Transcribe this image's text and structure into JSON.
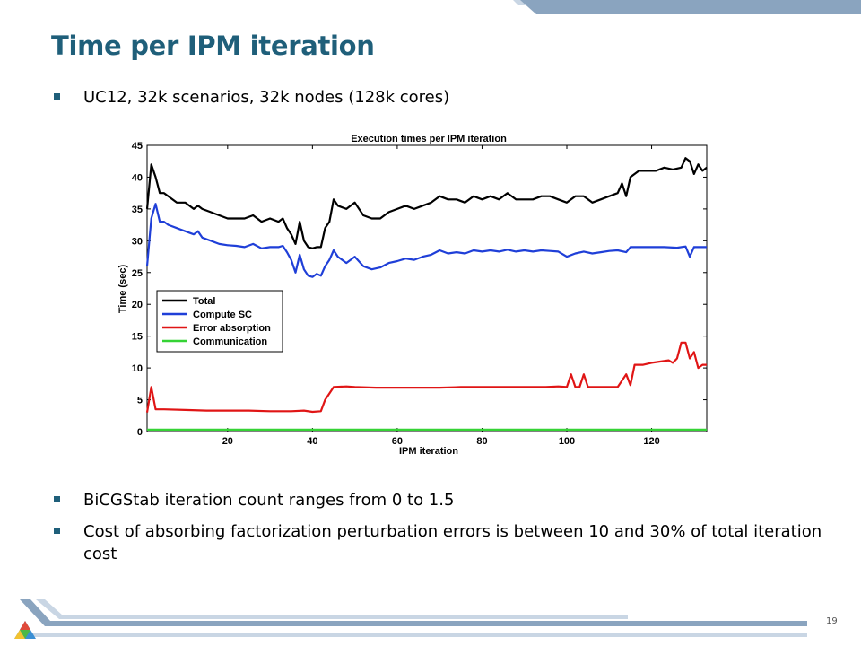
{
  "slide": {
    "title": "Time per IPM iteration",
    "bullets": [
      "UC12, 32k scenarios, 32k nodes (128k cores)",
      "BiCGStab iteration count ranges from 0 to 1.5",
      "Cost of absorbing factorization perturbation errors is between 10 and 30% of total iteration cost"
    ],
    "page_number": "19",
    "colors": {
      "title": "#1f5f7a",
      "bar_dark": "#8aa4bf",
      "bar_light": "#c9d6e4"
    }
  },
  "chart_data": {
    "type": "line",
    "title": "Execution times per IPM iteration",
    "xlabel": "IPM iteration",
    "ylabel": "Time (sec)",
    "xlim": [
      1,
      133
    ],
    "ylim": [
      0,
      45
    ],
    "xticks": [
      20,
      40,
      60,
      80,
      100,
      120
    ],
    "yticks": [
      0,
      5,
      10,
      15,
      20,
      25,
      30,
      35,
      40,
      45
    ],
    "grid": false,
    "legend_position": "center-left",
    "series": [
      {
        "name": "Total",
        "color": "#000000",
        "points": [
          [
            1,
            35
          ],
          [
            2,
            42
          ],
          [
            3,
            40
          ],
          [
            4,
            37.5
          ],
          [
            5,
            37.5
          ],
          [
            6,
            37
          ],
          [
            8,
            36
          ],
          [
            10,
            36
          ],
          [
            12,
            35
          ],
          [
            13,
            35.5
          ],
          [
            14,
            35
          ],
          [
            16,
            34.5
          ],
          [
            18,
            34
          ],
          [
            20,
            33.5
          ],
          [
            22,
            33.5
          ],
          [
            24,
            33.5
          ],
          [
            26,
            34
          ],
          [
            28,
            33
          ],
          [
            30,
            33.5
          ],
          [
            32,
            33
          ],
          [
            33,
            33.5
          ],
          [
            34,
            32
          ],
          [
            35,
            31
          ],
          [
            36,
            29.5
          ],
          [
            37,
            33
          ],
          [
            38,
            30
          ],
          [
            39,
            29
          ],
          [
            40,
            28.8
          ],
          [
            41,
            29
          ],
          [
            42,
            29
          ],
          [
            43,
            32
          ],
          [
            44,
            33
          ],
          [
            45,
            36.5
          ],
          [
            46,
            35.5
          ],
          [
            48,
            35
          ],
          [
            50,
            36
          ],
          [
            52,
            34
          ],
          [
            54,
            33.5
          ],
          [
            56,
            33.5
          ],
          [
            58,
            34.5
          ],
          [
            60,
            35
          ],
          [
            62,
            35.5
          ],
          [
            64,
            35
          ],
          [
            66,
            35.5
          ],
          [
            68,
            36
          ],
          [
            70,
            37
          ],
          [
            72,
            36.5
          ],
          [
            74,
            36.5
          ],
          [
            76,
            36
          ],
          [
            78,
            37
          ],
          [
            80,
            36.5
          ],
          [
            82,
            37
          ],
          [
            84,
            36.5
          ],
          [
            86,
            37.5
          ],
          [
            88,
            36.5
          ],
          [
            90,
            36.5
          ],
          [
            92,
            36.5
          ],
          [
            94,
            37
          ],
          [
            96,
            37
          ],
          [
            98,
            36.5
          ],
          [
            100,
            36
          ],
          [
            102,
            37
          ],
          [
            104,
            37
          ],
          [
            106,
            36
          ],
          [
            108,
            36.5
          ],
          [
            110,
            37
          ],
          [
            112,
            37.5
          ],
          [
            113,
            39
          ],
          [
            114,
            37
          ],
          [
            115,
            40
          ],
          [
            117,
            41
          ],
          [
            119,
            41
          ],
          [
            121,
            41
          ],
          [
            123,
            41.5
          ],
          [
            125,
            41.2
          ],
          [
            127,
            41.5
          ],
          [
            128,
            43
          ],
          [
            129,
            42.5
          ],
          [
            130,
            40.5
          ],
          [
            131,
            42
          ],
          [
            132,
            41
          ],
          [
            133,
            41.5
          ]
        ]
      },
      {
        "name": "Compute SC",
        "color": "#1f3fd8",
        "points": [
          [
            1,
            26
          ],
          [
            2,
            33.5
          ],
          [
            3,
            35.8
          ],
          [
            4,
            33
          ],
          [
            5,
            33
          ],
          [
            6,
            32.5
          ],
          [
            8,
            32
          ],
          [
            10,
            31.5
          ],
          [
            12,
            31
          ],
          [
            13,
            31.5
          ],
          [
            14,
            30.5
          ],
          [
            16,
            30
          ],
          [
            18,
            29.5
          ],
          [
            20,
            29.3
          ],
          [
            22,
            29.2
          ],
          [
            24,
            29
          ],
          [
            26,
            29.5
          ],
          [
            28,
            28.8
          ],
          [
            30,
            29
          ],
          [
            32,
            29
          ],
          [
            33,
            29.2
          ],
          [
            34,
            28.2
          ],
          [
            35,
            27
          ],
          [
            36,
            25
          ],
          [
            37,
            27.8
          ],
          [
            38,
            25.5
          ],
          [
            39,
            24.5
          ],
          [
            40,
            24.3
          ],
          [
            41,
            24.8
          ],
          [
            42,
            24.5
          ],
          [
            43,
            26
          ],
          [
            44,
            27
          ],
          [
            45,
            28.5
          ],
          [
            46,
            27.5
          ],
          [
            48,
            26.5
          ],
          [
            50,
            27.5
          ],
          [
            52,
            26
          ],
          [
            54,
            25.5
          ],
          [
            56,
            25.8
          ],
          [
            58,
            26.5
          ],
          [
            60,
            26.8
          ],
          [
            62,
            27.2
          ],
          [
            64,
            27
          ],
          [
            66,
            27.5
          ],
          [
            68,
            27.8
          ],
          [
            70,
            28.5
          ],
          [
            72,
            28
          ],
          [
            74,
            28.2
          ],
          [
            76,
            28
          ],
          [
            78,
            28.5
          ],
          [
            80,
            28.3
          ],
          [
            82,
            28.5
          ],
          [
            84,
            28.3
          ],
          [
            86,
            28.6
          ],
          [
            88,
            28.3
          ],
          [
            90,
            28.5
          ],
          [
            92,
            28.3
          ],
          [
            94,
            28.5
          ],
          [
            96,
            28.4
          ],
          [
            98,
            28.3
          ],
          [
            100,
            27.5
          ],
          [
            102,
            28
          ],
          [
            104,
            28.3
          ],
          [
            106,
            28
          ],
          [
            108,
            28.2
          ],
          [
            110,
            28.4
          ],
          [
            112,
            28.5
          ],
          [
            114,
            28.2
          ],
          [
            115,
            29
          ],
          [
            117,
            29
          ],
          [
            120,
            29
          ],
          [
            123,
            29
          ],
          [
            126,
            28.9
          ],
          [
            128,
            29.1
          ],
          [
            129,
            27.5
          ],
          [
            130,
            29
          ],
          [
            133,
            29
          ]
        ]
      },
      {
        "name": "Error absorption",
        "color": "#e01515",
        "points": [
          [
            1,
            3
          ],
          [
            2,
            7
          ],
          [
            3,
            3.5
          ],
          [
            5,
            3.5
          ],
          [
            10,
            3.4
          ],
          [
            15,
            3.3
          ],
          [
            20,
            3.3
          ],
          [
            25,
            3.3
          ],
          [
            30,
            3.2
          ],
          [
            35,
            3.2
          ],
          [
            38,
            3.3
          ],
          [
            40,
            3.1
          ],
          [
            42,
            3.2
          ],
          [
            43,
            5
          ],
          [
            44,
            6
          ],
          [
            45,
            7
          ],
          [
            48,
            7.1
          ],
          [
            50,
            7
          ],
          [
            55,
            6.9
          ],
          [
            60,
            6.9
          ],
          [
            65,
            6.9
          ],
          [
            70,
            6.9
          ],
          [
            75,
            7
          ],
          [
            80,
            7
          ],
          [
            85,
            7
          ],
          [
            90,
            7
          ],
          [
            95,
            7
          ],
          [
            98,
            7.1
          ],
          [
            100,
            7
          ],
          [
            101,
            9
          ],
          [
            102,
            7
          ],
          [
            103,
            7
          ],
          [
            104,
            9
          ],
          [
            105,
            7
          ],
          [
            108,
            7
          ],
          [
            112,
            7
          ],
          [
            114,
            9
          ],
          [
            115,
            7.3
          ],
          [
            116,
            10.5
          ],
          [
            118,
            10.5
          ],
          [
            120,
            10.8
          ],
          [
            122,
            11
          ],
          [
            124,
            11.2
          ],
          [
            125,
            10.8
          ],
          [
            126,
            11.5
          ],
          [
            127,
            14
          ],
          [
            128,
            14
          ],
          [
            129,
            11.5
          ],
          [
            130,
            12.5
          ],
          [
            131,
            10
          ],
          [
            132,
            10.5
          ],
          [
            133,
            10.5
          ]
        ]
      },
      {
        "name": "Communication",
        "color": "#35d335",
        "points": [
          [
            1,
            0.3
          ],
          [
            133,
            0.3
          ]
        ]
      }
    ]
  }
}
